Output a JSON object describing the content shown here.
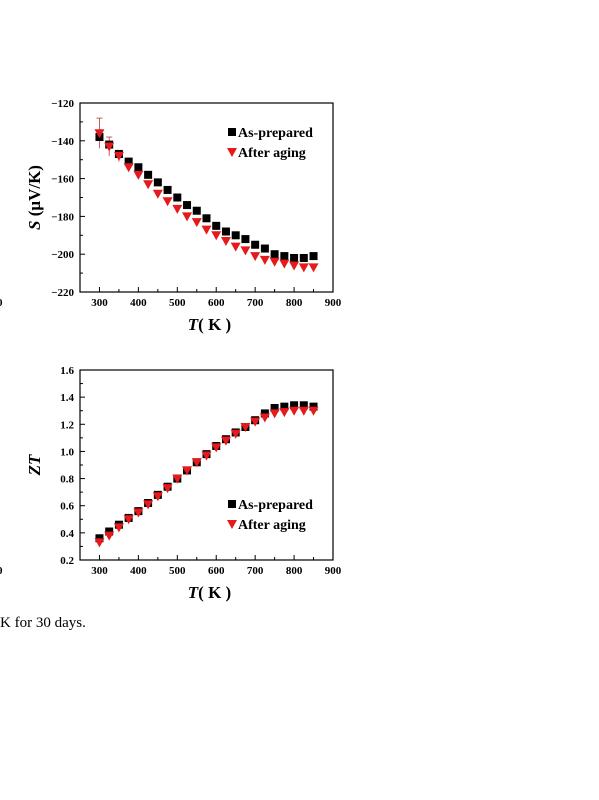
{
  "chart_data": [
    {
      "type": "scatter",
      "title": "",
      "xlabel": {
        "italic": "T",
        "rest": "( K )"
      },
      "ylabel": {
        "italic": "S",
        "rest": " (μV/K)"
      },
      "xlim": [
        250,
        900
      ],
      "ylim": [
        -220,
        -120
      ],
      "xticks": [
        300,
        400,
        500,
        600,
        700,
        800,
        900
      ],
      "yticks": [
        -220,
        -200,
        -180,
        -160,
        -140,
        -120
      ],
      "grid": false,
      "legend": "top-right",
      "edge_label": "0",
      "x": [
        300,
        325,
        350,
        375,
        400,
        425,
        450,
        475,
        500,
        525,
        550,
        575,
        600,
        625,
        650,
        675,
        700,
        725,
        750,
        775,
        800,
        825,
        850
      ],
      "series": [
        {
          "name": "As-prepared",
          "marker": "square",
          "color": "#000000",
          "values": [
            -138,
            -142,
            -147,
            -151,
            -154,
            -158,
            -162,
            -166,
            -170,
            -174,
            -177,
            -181,
            -185,
            -188,
            -190,
            -192,
            -195,
            -197,
            -200,
            -201,
            -202,
            -202,
            -201
          ]
        },
        {
          "name": "After aging",
          "marker": "triangle-down",
          "color": "#e41a1c",
          "values": [
            -136,
            -143,
            -148,
            -154,
            -158,
            -163,
            -168,
            -172,
            -176,
            -180,
            -183,
            -187,
            -190,
            -193,
            -196,
            -198,
            -201,
            -203,
            -204,
            -205,
            -206,
            -207,
            -207
          ]
        }
      ]
    },
    {
      "type": "scatter",
      "title": "",
      "xlabel": {
        "italic": "T",
        "rest": "( K )"
      },
      "ylabel": {
        "italic": "ZT",
        "rest": ""
      },
      "xlim": [
        250,
        900
      ],
      "ylim": [
        0.2,
        1.6
      ],
      "xticks": [
        300,
        400,
        500,
        600,
        700,
        800,
        900
      ],
      "yticks": [
        0.2,
        0.4,
        0.6,
        0.8,
        1.0,
        1.2,
        1.4,
        1.6
      ],
      "grid": false,
      "legend": "bottom-right",
      "edge_label": "0",
      "x": [
        300,
        325,
        350,
        375,
        400,
        425,
        450,
        475,
        500,
        525,
        550,
        575,
        600,
        625,
        650,
        675,
        700,
        725,
        750,
        775,
        800,
        825,
        850
      ],
      "series": [
        {
          "name": "As-prepared",
          "marker": "square",
          "color": "#000000",
          "values": [
            0.36,
            0.41,
            0.46,
            0.51,
            0.56,
            0.62,
            0.68,
            0.74,
            0.8,
            0.86,
            0.92,
            0.98,
            1.04,
            1.09,
            1.14,
            1.18,
            1.23,
            1.28,
            1.32,
            1.33,
            1.34,
            1.34,
            1.33
          ]
        },
        {
          "name": "After aging",
          "marker": "triangle-down",
          "color": "#e41a1c",
          "values": [
            0.33,
            0.38,
            0.44,
            0.5,
            0.55,
            0.61,
            0.67,
            0.73,
            0.8,
            0.86,
            0.92,
            0.97,
            1.03,
            1.08,
            1.13,
            1.18,
            1.22,
            1.25,
            1.28,
            1.29,
            1.3,
            1.3,
            1.3
          ]
        }
      ]
    }
  ],
  "caption": "K for 30 days."
}
